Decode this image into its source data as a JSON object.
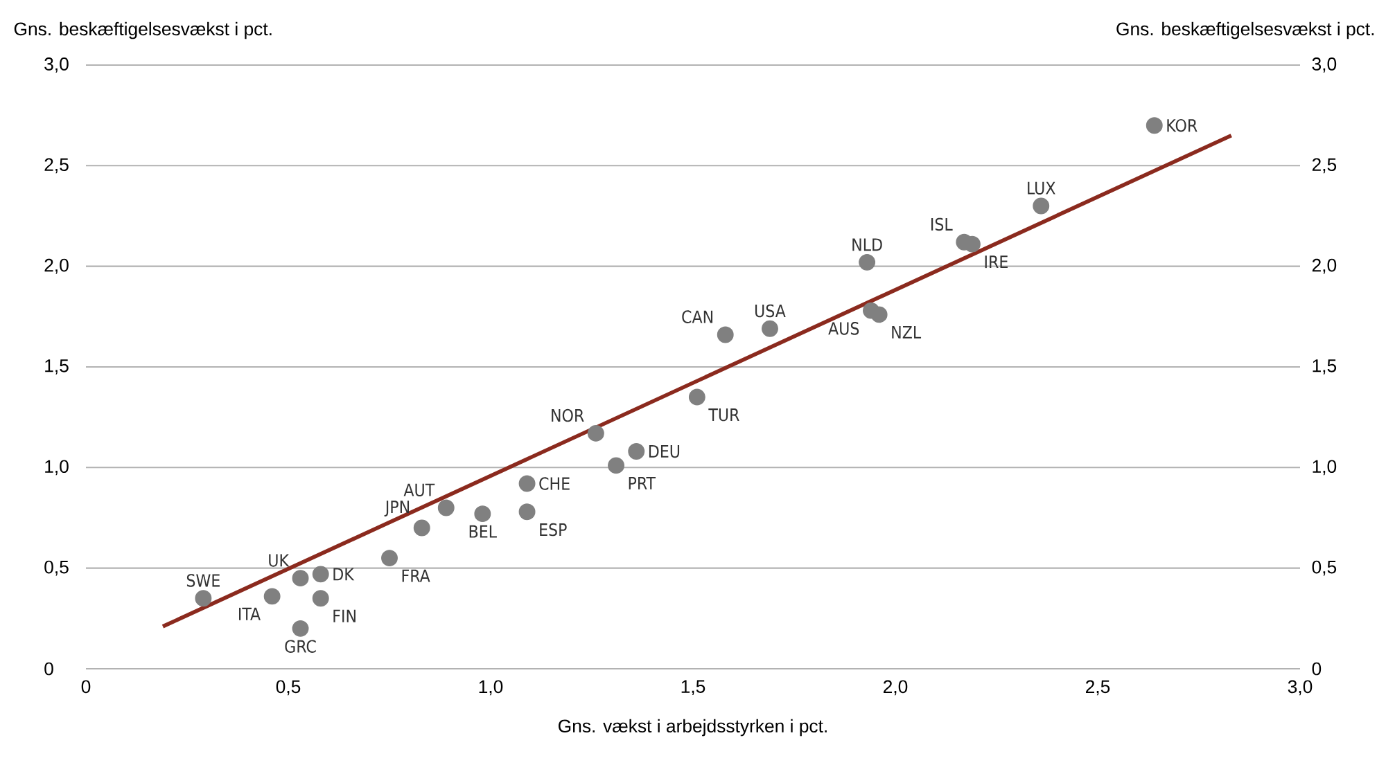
{
  "chart_data": {
    "type": "scatter",
    "xlabel": "Gns. vækst i arbejdsstyrken i pct.",
    "ylabel": "Gns. beskæftigelsesvækst i pct.",
    "y2label": "Gns. beskæftigelsesvækst i pct.",
    "xlim": [
      0,
      3.0
    ],
    "ylim": [
      0,
      3.0
    ],
    "y2lim": [
      0,
      3.0
    ],
    "xticks": [
      0,
      {
        "value": 0.5,
        "label": "0,5"
      },
      {
        "value": 1.0,
        "label": "1,0"
      },
      {
        "value": 1.5,
        "label": "1,5"
      },
      {
        "value": 2.0,
        "label": "2,0"
      },
      {
        "value": 2.5,
        "label": "2,5"
      },
      {
        "value": 3.0,
        "label": "3,0"
      }
    ],
    "yticks": [
      0,
      {
        "value": 0.5,
        "label": "0,5"
      },
      {
        "value": 1.0,
        "label": "1,0"
      },
      {
        "value": 1.5,
        "label": "1,5"
      },
      {
        "value": 2.0,
        "label": "2,0"
      },
      {
        "value": 2.5,
        "label": "2,5"
      },
      {
        "value": 3.0,
        "label": "3,0"
      }
    ],
    "y2ticks": [
      0,
      {
        "value": 0.5,
        "label": "0,5"
      },
      {
        "value": 1.0,
        "label": "1,0"
      },
      {
        "value": 1.5,
        "label": "1,5"
      },
      {
        "value": 2.0,
        "label": "2,0"
      },
      {
        "value": 2.5,
        "label": "2,5"
      },
      {
        "value": 3.0,
        "label": "3,0"
      }
    ],
    "grid": "y",
    "marker": "circle",
    "series": [
      {
        "color": "#808080",
        "x": [
          0.29,
          0.46,
          0.53,
          0.58,
          0.58,
          0.53,
          0.75,
          0.83,
          0.89,
          0.98,
          1.09,
          1.09,
          1.26,
          1.31,
          1.36,
          1.51,
          1.58,
          1.69,
          1.93,
          1.96,
          1.94,
          2.17,
          2.19,
          2.36,
          2.64
        ],
        "values": [
          0.35,
          0.36,
          0.45,
          0.47,
          0.35,
          0.2,
          0.55,
          0.7,
          0.8,
          0.77,
          0.92,
          0.78,
          1.17,
          1.01,
          1.08,
          1.35,
          1.66,
          1.69,
          2.02,
          1.76,
          1.78,
          2.12,
          2.11,
          2.3,
          2.7
        ]
      },
      {
        "type": "line",
        "marker": "none",
        "color": "#8b2a1e",
        "x": [
          0.19,
          2.83
        ],
        "values": [
          0.21,
          2.65
        ]
      }
    ],
    "annotations": [
      {
        "text": "SWE",
        "x": 0.29,
        "y": 0.35
      },
      {
        "text": "ITA",
        "x": 0.46,
        "y": 0.36
      },
      {
        "text": "UK",
        "x": 0.53,
        "y": 0.45
      },
      {
        "text": "DK",
        "x": 0.58,
        "y": 0.47
      },
      {
        "text": "FIN",
        "x": 0.58,
        "y": 0.35
      },
      {
        "text": "GRC",
        "x": 0.53,
        "y": 0.2
      },
      {
        "text": "FRA",
        "x": 0.75,
        "y": 0.55
      },
      {
        "text": "JPN",
        "x": 0.83,
        "y": 0.7
      },
      {
        "text": "AUT",
        "x": 0.89,
        "y": 0.8
      },
      {
        "text": "BEL",
        "x": 0.98,
        "y": 0.77
      },
      {
        "text": "CHE",
        "x": 1.09,
        "y": 0.92
      },
      {
        "text": "ESP",
        "x": 1.09,
        "y": 0.78
      },
      {
        "text": "NOR",
        "x": 1.26,
        "y": 1.17
      },
      {
        "text": "PRT",
        "x": 1.31,
        "y": 1.01
      },
      {
        "text": "DEU",
        "x": 1.36,
        "y": 1.08
      },
      {
        "text": "TUR",
        "x": 1.51,
        "y": 1.35
      },
      {
        "text": "CAN",
        "x": 1.58,
        "y": 1.66
      },
      {
        "text": "USA",
        "x": 1.69,
        "y": 1.69
      },
      {
        "text": "NLD",
        "x": 1.93,
        "y": 2.02
      },
      {
        "text": "NZL",
        "x": 1.96,
        "y": 1.76
      },
      {
        "text": "AUS",
        "x": 1.94,
        "y": 1.78
      },
      {
        "text": "ISL",
        "x": 2.17,
        "y": 2.12
      },
      {
        "text": "IRE",
        "x": 2.19,
        "y": 2.11
      },
      {
        "text": "LUX",
        "x": 2.36,
        "y": 2.3
      },
      {
        "text": "KOR",
        "x": 2.64,
        "y": 2.7
      }
    ]
  }
}
